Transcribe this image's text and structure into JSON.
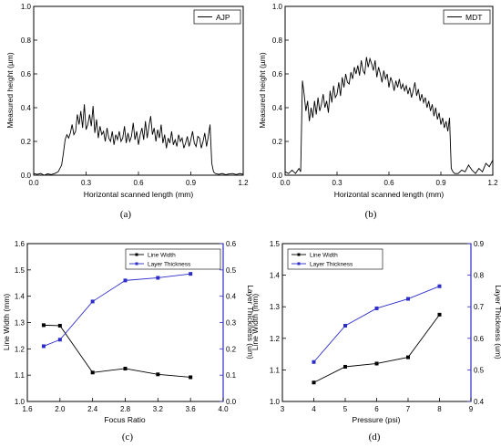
{
  "chart_data": [
    {
      "type": "line",
      "panel_label": "(a)",
      "legend": "AJP",
      "xlabel": "Horizontal scanned length (mm)",
      "ylabel": "Measured height (µm)",
      "xlim": [
        0,
        1.2
      ],
      "ylim": [
        0,
        1.0
      ],
      "xticks": [
        "0.0",
        "0.3",
        "0.6",
        "0.9",
        "1.2"
      ],
      "yticks": [
        "0.0",
        "0.2",
        "0.4",
        "0.6",
        "0.8",
        "1.0"
      ],
      "series": [
        {
          "name": "AJP",
          "color": "#000000",
          "x": [
            0,
            0.02,
            0.04,
            0.06,
            0.08,
            0.1,
            0.12,
            0.14,
            0.16,
            0.17,
            0.18,
            0.19,
            0.2,
            0.21,
            0.22,
            0.23,
            0.24,
            0.25,
            0.26,
            0.27,
            0.28,
            0.29,
            0.3,
            0.31,
            0.32,
            0.33,
            0.34,
            0.35,
            0.36,
            0.37,
            0.38,
            0.39,
            0.4,
            0.41,
            0.42,
            0.43,
            0.44,
            0.45,
            0.46,
            0.47,
            0.48,
            0.49,
            0.5,
            0.51,
            0.52,
            0.53,
            0.54,
            0.55,
            0.56,
            0.57,
            0.58,
            0.59,
            0.6,
            0.61,
            0.62,
            0.63,
            0.64,
            0.65,
            0.66,
            0.67,
            0.68,
            0.69,
            0.7,
            0.71,
            0.72,
            0.73,
            0.74,
            0.75,
            0.76,
            0.77,
            0.78,
            0.79,
            0.8,
            0.81,
            0.82,
            0.83,
            0.84,
            0.85,
            0.86,
            0.87,
            0.88,
            0.89,
            0.9,
            0.91,
            0.92,
            0.93,
            0.94,
            0.95,
            0.96,
            0.97,
            0.98,
            0.99,
            1.0,
            1.01,
            1.02,
            1.03,
            1.04,
            1.06,
            1.08,
            1.1,
            1.12,
            1.14,
            1.16,
            1.18,
            1.2
          ],
          "y": [
            0.01,
            0.005,
            0.01,
            0.0,
            0.008,
            0.004,
            0.01,
            0.02,
            0.06,
            0.13,
            0.21,
            0.24,
            0.22,
            0.25,
            0.3,
            0.24,
            0.26,
            0.36,
            0.3,
            0.38,
            0.28,
            0.42,
            0.27,
            0.3,
            0.36,
            0.29,
            0.41,
            0.25,
            0.33,
            0.22,
            0.29,
            0.24,
            0.26,
            0.2,
            0.28,
            0.22,
            0.2,
            0.26,
            0.18,
            0.24,
            0.21,
            0.26,
            0.2,
            0.22,
            0.29,
            0.19,
            0.25,
            0.2,
            0.23,
            0.31,
            0.21,
            0.26,
            0.18,
            0.24,
            0.28,
            0.21,
            0.32,
            0.22,
            0.29,
            0.35,
            0.24,
            0.28,
            0.2,
            0.27,
            0.22,
            0.3,
            0.19,
            0.24,
            0.16,
            0.22,
            0.19,
            0.26,
            0.18,
            0.21,
            0.17,
            0.24,
            0.2,
            0.22,
            0.16,
            0.19,
            0.23,
            0.17,
            0.21,
            0.26,
            0.19,
            0.17,
            0.23,
            0.22,
            0.16,
            0.2,
            0.25,
            0.17,
            0.23,
            0.3,
            0.07,
            0.02,
            0.01,
            0.005,
            0.01,
            0.003,
            0.008,
            0.01,
            0.004,
            0.01,
            0.005
          ]
        }
      ]
    },
    {
      "type": "line",
      "panel_label": "(b)",
      "legend": "MDT",
      "xlabel": "Horizontal scanned length (mm)",
      "ylabel": "Measured height (µm)",
      "xlim": [
        0,
        1.2
      ],
      "ylim": [
        0,
        1.0
      ],
      "xticks": [
        "0.0",
        "0.3",
        "0.6",
        "0.9",
        "1.2"
      ],
      "yticks": [
        "0.0",
        "0.2",
        "0.4",
        "0.6",
        "0.8",
        "1.0"
      ],
      "series": [
        {
          "name": "MDT",
          "color": "#000000",
          "x": [
            0,
            0.02,
            0.04,
            0.06,
            0.08,
            0.09,
            0.1,
            0.11,
            0.12,
            0.13,
            0.14,
            0.15,
            0.16,
            0.17,
            0.18,
            0.19,
            0.2,
            0.21,
            0.22,
            0.23,
            0.24,
            0.25,
            0.26,
            0.27,
            0.28,
            0.29,
            0.3,
            0.31,
            0.32,
            0.33,
            0.34,
            0.35,
            0.36,
            0.37,
            0.38,
            0.39,
            0.4,
            0.41,
            0.42,
            0.43,
            0.44,
            0.45,
            0.46,
            0.47,
            0.48,
            0.49,
            0.5,
            0.51,
            0.52,
            0.53,
            0.54,
            0.55,
            0.56,
            0.57,
            0.58,
            0.59,
            0.6,
            0.61,
            0.62,
            0.63,
            0.64,
            0.65,
            0.66,
            0.67,
            0.68,
            0.69,
            0.7,
            0.71,
            0.72,
            0.73,
            0.74,
            0.75,
            0.76,
            0.77,
            0.78,
            0.79,
            0.8,
            0.81,
            0.82,
            0.83,
            0.84,
            0.85,
            0.86,
            0.87,
            0.88,
            0.89,
            0.9,
            0.91,
            0.92,
            0.93,
            0.94,
            0.95,
            0.96,
            0.97,
            0.98,
            1.0,
            1.02,
            1.04,
            1.06,
            1.08,
            1.1,
            1.12,
            1.14,
            1.16,
            1.18,
            1.2
          ],
          "y": [
            0.02,
            0.01,
            0.03,
            0.01,
            0.04,
            0.02,
            0.56,
            0.48,
            0.38,
            0.44,
            0.32,
            0.4,
            0.34,
            0.44,
            0.36,
            0.46,
            0.38,
            0.42,
            0.48,
            0.4,
            0.44,
            0.37,
            0.5,
            0.43,
            0.53,
            0.46,
            0.48,
            0.55,
            0.47,
            0.58,
            0.52,
            0.6,
            0.55,
            0.54,
            0.61,
            0.57,
            0.64,
            0.6,
            0.65,
            0.59,
            0.68,
            0.62,
            0.6,
            0.7,
            0.64,
            0.69,
            0.66,
            0.62,
            0.68,
            0.58,
            0.64,
            0.6,
            0.55,
            0.62,
            0.57,
            0.6,
            0.52,
            0.58,
            0.55,
            0.5,
            0.56,
            0.52,
            0.57,
            0.51,
            0.54,
            0.5,
            0.53,
            0.48,
            0.52,
            0.46,
            0.5,
            0.55,
            0.47,
            0.51,
            0.44,
            0.48,
            0.43,
            0.46,
            0.4,
            0.44,
            0.38,
            0.42,
            0.35,
            0.4,
            0.33,
            0.37,
            0.3,
            0.34,
            0.28,
            0.32,
            0.26,
            0.34,
            0.04,
            0.02,
            0.01,
            0.01,
            0.03,
            0.02,
            0.06,
            0.03,
            0.01,
            0.04,
            0.02,
            0.07,
            0.05,
            0.09
          ]
        }
      ]
    },
    {
      "type": "line",
      "panel_label": "(c)",
      "xlabel": "Focus Ratio",
      "ylabel": "Line Width (mm)",
      "y2label": "Layer Thickness (um)",
      "xlim": [
        1.6,
        4.0
      ],
      "ylim": [
        1.0,
        1.6
      ],
      "y2lim": [
        0.0,
        0.6
      ],
      "xticks": [
        "1.6",
        "2.0",
        "2.4",
        "2.8",
        "3.2",
        "3.6",
        "4.0"
      ],
      "xtick_values": [
        1.6,
        2.0,
        2.4,
        2.8,
        3.2,
        3.6,
        4.0
      ],
      "yticks": [
        "1.0",
        "1.1",
        "1.2",
        "1.3",
        "1.4",
        "1.5",
        "1.6"
      ],
      "ytick_values": [
        1.0,
        1.1,
        1.2,
        1.3,
        1.4,
        1.5,
        1.6
      ],
      "y2ticks": [
        "0.0",
        "0.1",
        "0.2",
        "0.3",
        "0.4",
        "0.5",
        "0.6"
      ],
      "y2tick_values": [
        0.0,
        0.1,
        0.2,
        0.3,
        0.4,
        0.5,
        0.6
      ],
      "legend_position": "top-right",
      "series": [
        {
          "name": "Line Width",
          "axis": "left",
          "color": "#000000",
          "x": [
            1.8,
            2.0,
            2.4,
            2.8,
            3.2,
            3.6
          ],
          "y": [
            1.29,
            1.288,
            1.11,
            1.125,
            1.103,
            1.092
          ]
        },
        {
          "name": "Layer Thickness",
          "axis": "right",
          "color": "#2d2dc8",
          "x": [
            1.8,
            2.0,
            2.4,
            2.8,
            3.2,
            3.6
          ],
          "y": [
            0.21,
            0.235,
            0.38,
            0.46,
            0.47,
            0.485
          ]
        }
      ]
    },
    {
      "type": "line",
      "panel_label": "(d)",
      "xlabel": "Pressure (psi)",
      "ylabel": "Line Width (mm)",
      "y2label": "Layer Thickness (um)",
      "xlim": [
        3,
        9
      ],
      "ylim": [
        1.0,
        1.5
      ],
      "y2lim": [
        0.4,
        0.9
      ],
      "xticks": [
        "3",
        "4",
        "5",
        "6",
        "7",
        "8",
        "9"
      ],
      "xtick_values": [
        3,
        4,
        5,
        6,
        7,
        8,
        9
      ],
      "yticks": [
        "1.0",
        "1.1",
        "1.2",
        "1.3",
        "1.4",
        "1.5"
      ],
      "ytick_values": [
        1.0,
        1.1,
        1.2,
        1.3,
        1.4,
        1.5
      ],
      "y2ticks": [
        "0.4",
        "0.5",
        "0.6",
        "0.7",
        "0.8",
        "0.9"
      ],
      "y2tick_values": [
        0.4,
        0.5,
        0.6,
        0.7,
        0.8,
        0.9
      ],
      "legend_position": "top-left",
      "series": [
        {
          "name": "Line Width",
          "axis": "left",
          "color": "#000000",
          "x": [
            4,
            5,
            6,
            7,
            8
          ],
          "y": [
            1.06,
            1.11,
            1.12,
            1.14,
            1.275
          ]
        },
        {
          "name": "Layer Thickness",
          "axis": "right",
          "color": "#2d2dc8",
          "x": [
            4,
            5,
            6,
            7,
            8
          ],
          "y": [
            0.525,
            0.64,
            0.695,
            0.725,
            0.765
          ]
        }
      ]
    }
  ]
}
